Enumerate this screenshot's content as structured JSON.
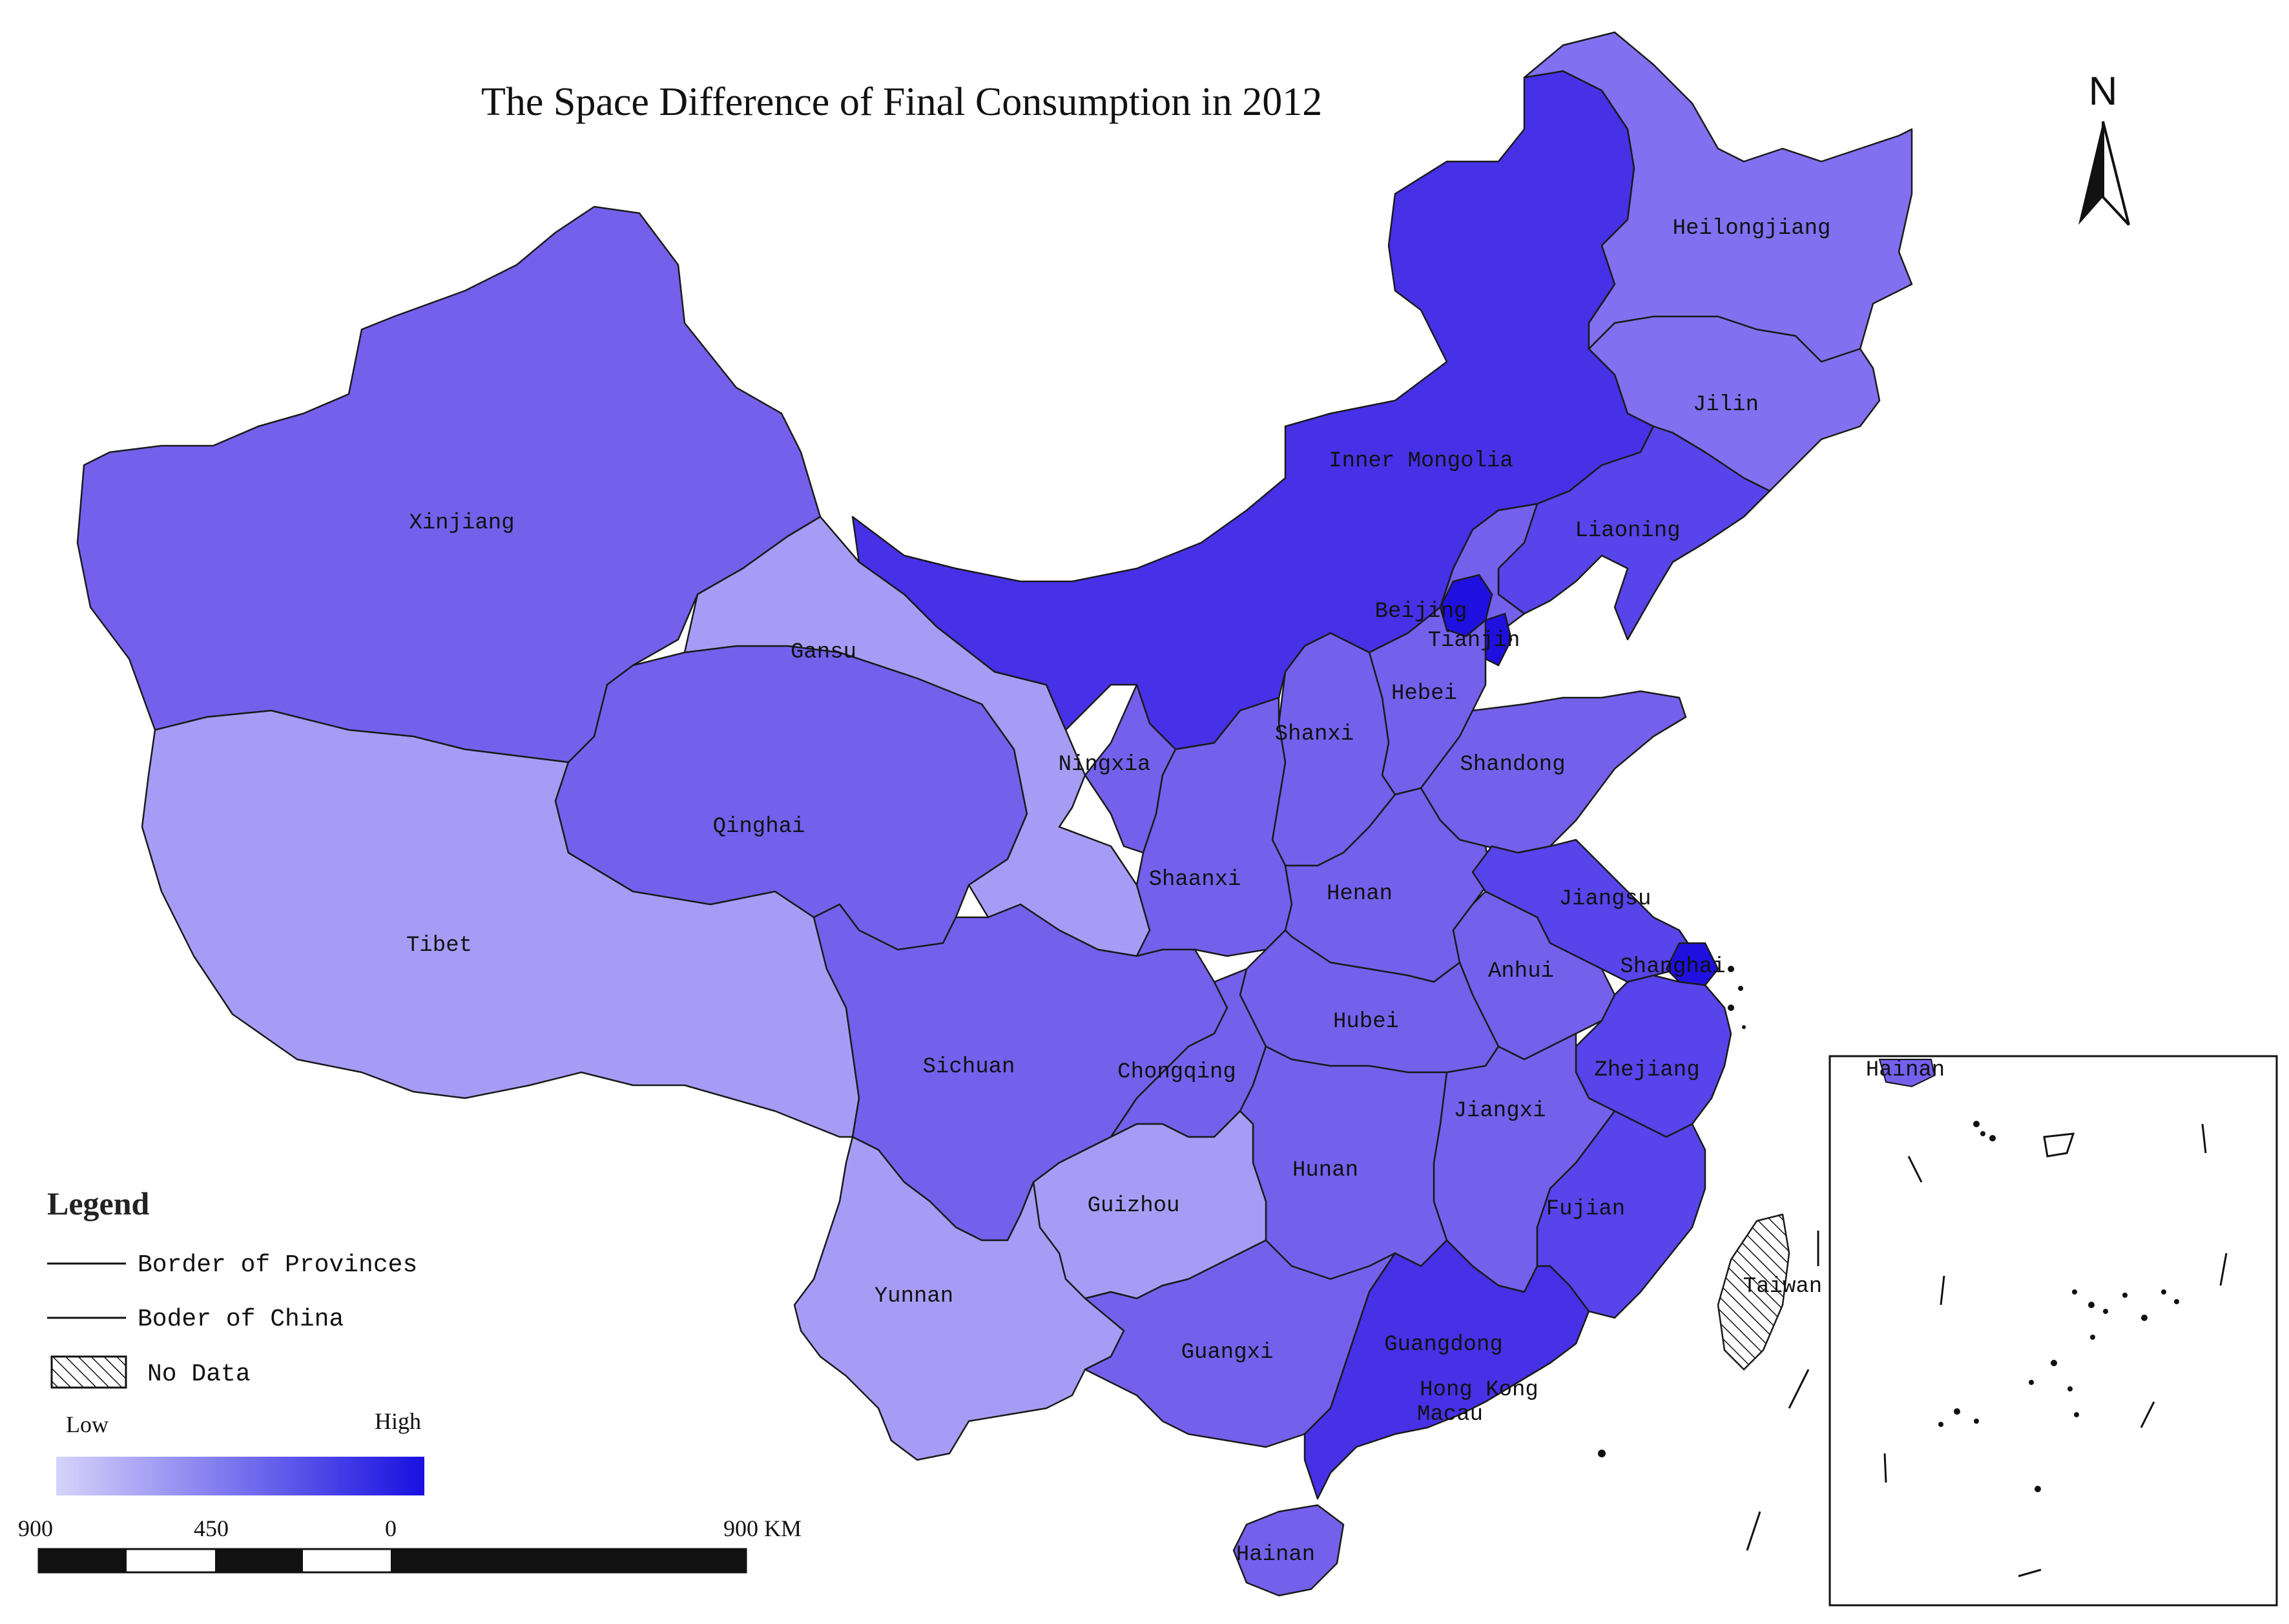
{
  "title": "The Space Difference of Final Consumption in 2012",
  "north_label": "N",
  "colors": {
    "level1": "#a79cf5",
    "level2": "#8270f0",
    "level3": "#7560ec",
    "level4": "#5744ea",
    "level5": "#4631e6",
    "level6": "#1f10e0",
    "gradient_low": "#d6d3fb",
    "gradient_high": "#1810e0"
  },
  "provinces": [
    {
      "name": "Xinjiang",
      "level": 3
    },
    {
      "name": "Tibet",
      "level": 1
    },
    {
      "name": "Qinghai",
      "level": 3
    },
    {
      "name": "Gansu",
      "level": 1
    },
    {
      "name": "Inner Mongolia",
      "level": 5
    },
    {
      "name": "Heilongjiang",
      "level": 2
    },
    {
      "name": "Jilin",
      "level": 2
    },
    {
      "name": "Liaoning",
      "level": 4
    },
    {
      "name": "Beijing",
      "level": 6
    },
    {
      "name": "Tianjin",
      "level": 6
    },
    {
      "name": "Hebei",
      "level": 3
    },
    {
      "name": "Shanxi",
      "level": 3
    },
    {
      "name": "Shandong",
      "level": 3
    },
    {
      "name": "Ningxia",
      "level": 3
    },
    {
      "name": "Shaanxi",
      "level": 3
    },
    {
      "name": "Henan",
      "level": 3
    },
    {
      "name": "Jiangsu",
      "level": 4
    },
    {
      "name": "Shanghai",
      "level": 6
    },
    {
      "name": "Anhui",
      "level": 3
    },
    {
      "name": "Hubei",
      "level": 3
    },
    {
      "name": "Sichuan",
      "level": 3
    },
    {
      "name": "Chongqing",
      "level": 3
    },
    {
      "name": "Zhejiang",
      "level": 4
    },
    {
      "name": "Jiangxi",
      "level": 3
    },
    {
      "name": "Hunan",
      "level": 3
    },
    {
      "name": "Guizhou",
      "level": 1
    },
    {
      "name": "Fujian",
      "level": 4
    },
    {
      "name": "Yunnan",
      "level": 1
    },
    {
      "name": "Guangxi",
      "level": 3
    },
    {
      "name": "Guangdong",
      "level": 5
    },
    {
      "name": "Hong Kong",
      "level": 5
    },
    {
      "name": "Macau",
      "level": 5
    },
    {
      "name": "Hainan",
      "level": 3
    },
    {
      "name": "Taiwan",
      "level": 0
    }
  ],
  "inset": {
    "label": "Hainan"
  },
  "legend": {
    "title": "Legend",
    "province_border": "Border of Provinces",
    "china_border": "Boder of China",
    "no_data": "No Data",
    "low": "Low",
    "high": "High"
  },
  "scale_bar": {
    "ticks": [
      "900",
      "450",
      "0",
      "900 KM"
    ]
  }
}
